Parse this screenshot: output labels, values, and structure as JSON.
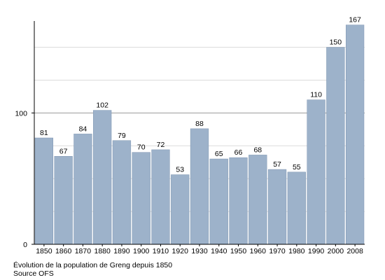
{
  "chart_data": {
    "type": "bar",
    "categories": [
      "1850",
      "1860",
      "1870",
      "1880",
      "1890",
      "1900",
      "1910",
      "1920",
      "1930",
      "1940",
      "1950",
      "1960",
      "1970",
      "1980",
      "1990",
      "2000",
      "2008"
    ],
    "values": [
      81,
      67,
      84,
      102,
      79,
      70,
      72,
      53,
      88,
      65,
      66,
      68,
      57,
      55,
      110,
      150,
      167
    ],
    "ylim": [
      0,
      170
    ],
    "yticks": [
      0,
      100
    ],
    "grid": true,
    "bar_color": "#9db2ca",
    "bar_edge_color": "#7f96b2"
  },
  "caption": {
    "line1": "Évolution de la population de Greng depuis 1850",
    "line2": "Source OFS"
  }
}
